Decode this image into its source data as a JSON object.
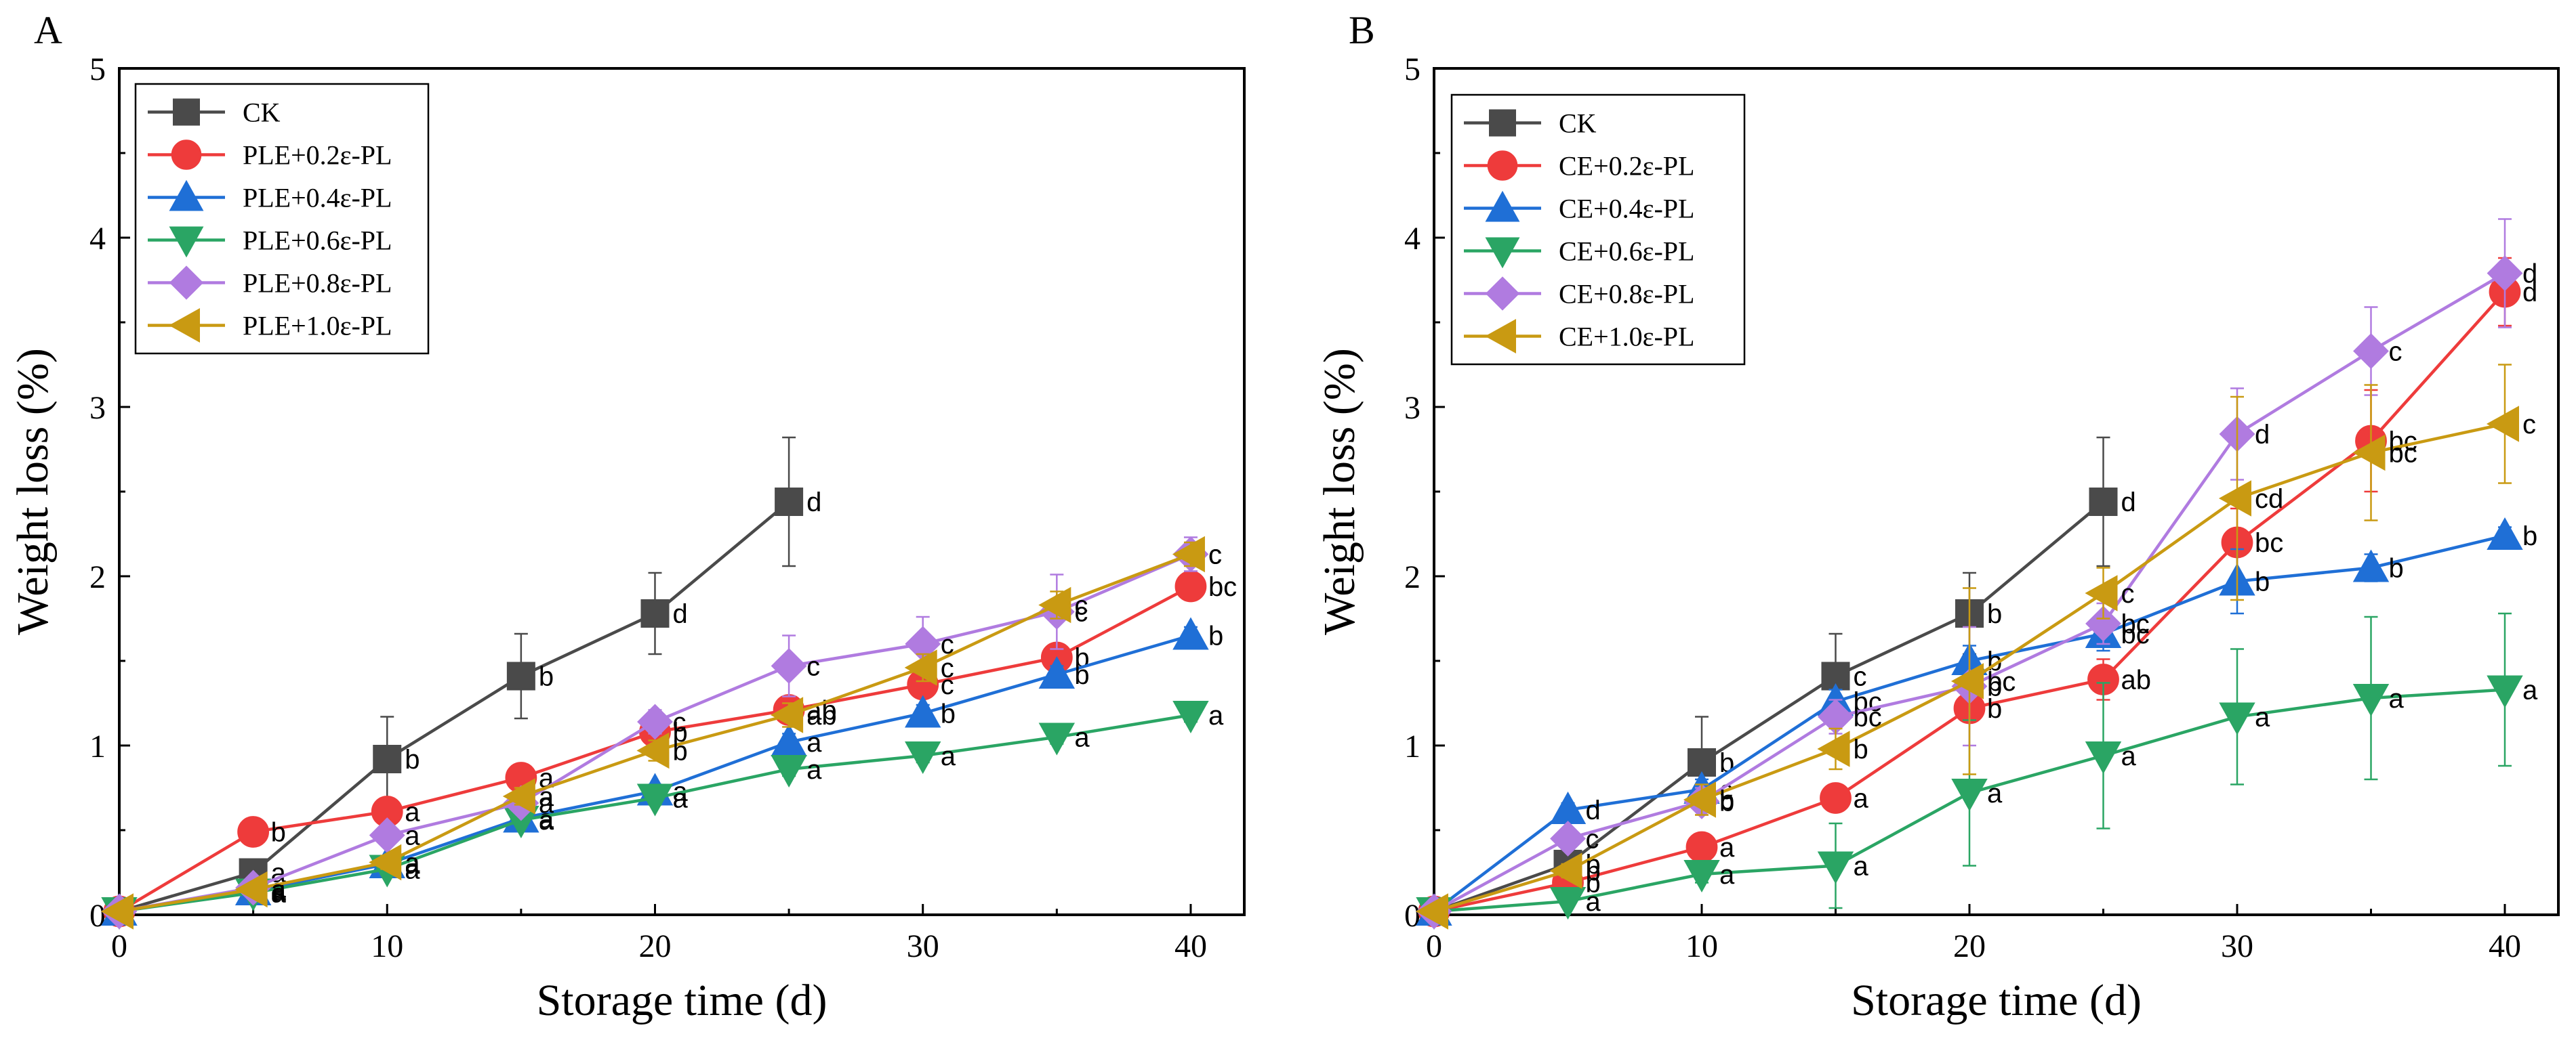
{
  "chart_data": [
    {
      "type": "line",
      "panel": "A",
      "xlabel": "Storage time (d)",
      "ylabel": "Weight loss (%)",
      "xlim": [
        0,
        42
      ],
      "ylim": [
        0,
        5
      ],
      "xticks": [
        0,
        10,
        20,
        30,
        40
      ],
      "yticks": [
        0,
        1,
        2,
        3,
        4,
        5
      ],
      "legend_position": "top-left",
      "series": [
        {
          "name": "CK",
          "color": "#4a4a4a",
          "marker": "square",
          "x": [
            0,
            5,
            10,
            15,
            20,
            25
          ],
          "y": [
            0.02,
            0.25,
            0.92,
            1.41,
            1.78,
            2.44
          ],
          "err": [
            0,
            0.05,
            0.25,
            0.25,
            0.24,
            0.38
          ],
          "labels": [
            "",
            "a",
            "b",
            "b",
            "d",
            "d"
          ]
        },
        {
          "name": "PLE+0.2ε-PL",
          "color": "#ee3b3b",
          "marker": "circle",
          "x": [
            0,
            5,
            10,
            15,
            20,
            25,
            30,
            35,
            40
          ],
          "y": [
            0.02,
            0.49,
            0.61,
            0.81,
            1.08,
            1.21,
            1.36,
            1.52,
            1.94
          ],
          "err": [
            0,
            0.04,
            0.04,
            0.04,
            0.05,
            0.05,
            0.05,
            0.06,
            0.08
          ],
          "labels": [
            "",
            "b",
            "a",
            "a",
            "b",
            "ab",
            "c",
            "b",
            "bc"
          ]
        },
        {
          "name": "PLE+0.4ε-PL",
          "color": "#1f6fd6",
          "marker": "triangle-up",
          "x": [
            0,
            5,
            10,
            15,
            20,
            25,
            30,
            35,
            40
          ],
          "y": [
            0.02,
            0.14,
            0.3,
            0.57,
            0.73,
            1.02,
            1.19,
            1.42,
            1.65
          ],
          "err": [
            0,
            0.03,
            0.03,
            0.04,
            0.04,
            0.05,
            0.05,
            0.05,
            0.05
          ],
          "labels": [
            "",
            "a",
            "a",
            "a",
            "a",
            "a",
            "b",
            "b",
            "b"
          ]
        },
        {
          "name": "PLE+0.6ε-PL",
          "color": "#2aa564",
          "marker": "triangle-down",
          "x": [
            0,
            5,
            10,
            15,
            20,
            25,
            30,
            35,
            40
          ],
          "y": [
            0.02,
            0.13,
            0.27,
            0.56,
            0.69,
            0.86,
            0.94,
            1.05,
            1.18
          ],
          "err": [
            0,
            0.02,
            0.03,
            0.03,
            0.04,
            0.04,
            0.04,
            0.04,
            0.04
          ],
          "labels": [
            "",
            "a",
            "a",
            "a",
            "a",
            "a",
            "a",
            "a",
            "a"
          ]
        },
        {
          "name": "PLE+0.8ε-PL",
          "color": "#b07be0",
          "marker": "diamond",
          "x": [
            0,
            5,
            10,
            15,
            20,
            25,
            30,
            35,
            40
          ],
          "y": [
            0.02,
            0.16,
            0.47,
            0.66,
            1.14,
            1.47,
            1.6,
            1.79,
            2.13
          ],
          "err": [
            0,
            0.03,
            0.04,
            0.05,
            0.07,
            0.18,
            0.16,
            0.22,
            0.1
          ],
          "labels": [
            "",
            "a",
            "a",
            "a",
            "c",
            "c",
            "c",
            "c",
            "c"
          ]
        },
        {
          "name": "PLE+1.0ε-PL",
          "color": "#c99a12",
          "marker": "triangle-left",
          "x": [
            0,
            5,
            10,
            15,
            20,
            25,
            30,
            35,
            40
          ],
          "y": [
            0.02,
            0.15,
            0.31,
            0.7,
            0.97,
            1.18,
            1.46,
            1.83,
            2.13
          ],
          "err": [
            0,
            0.03,
            0.04,
            0.05,
            0.06,
            0.07,
            0.08,
            0.08,
            0.07
          ],
          "labels": [
            "",
            "a",
            "a",
            "a",
            "b",
            "ab",
            "c",
            "c",
            "c"
          ]
        }
      ]
    },
    {
      "type": "line",
      "panel": "B",
      "xlabel": "Storage time (d)",
      "ylabel": "Weight loss (%)",
      "xlim": [
        0,
        42
      ],
      "ylim": [
        0,
        5
      ],
      "xticks": [
        0,
        10,
        20,
        30,
        40
      ],
      "yticks": [
        0,
        1,
        2,
        3,
        4,
        5
      ],
      "legend_position": "top-left",
      "series": [
        {
          "name": "CK",
          "color": "#4a4a4a",
          "marker": "square",
          "x": [
            0,
            5,
            10,
            15,
            20,
            25
          ],
          "y": [
            0.02,
            0.3,
            0.9,
            1.41,
            1.78,
            2.44
          ],
          "err": [
            0,
            0.05,
            0.27,
            0.25,
            0.24,
            0.38
          ],
          "labels": [
            "",
            "b",
            "b",
            "c",
            "b",
            "d"
          ]
        },
        {
          "name": "CE+0.2ε-PL",
          "color": "#ee3b3b",
          "marker": "circle",
          "x": [
            0,
            5,
            10,
            15,
            20,
            25,
            30,
            35,
            40
          ],
          "y": [
            0.02,
            0.19,
            0.4,
            0.69,
            1.22,
            1.39,
            2.2,
            2.8,
            3.68
          ],
          "err": [
            0,
            0.03,
            0.04,
            0.05,
            0.08,
            0.12,
            0.2,
            0.3,
            0.2
          ],
          "labels": [
            "",
            "b",
            "a",
            "a",
            "b",
            "ab",
            "bc",
            "bc",
            "d"
          ]
        },
        {
          "name": "CE+0.4ε-PL",
          "color": "#1f6fd6",
          "marker": "triangle-up",
          "x": [
            0,
            5,
            10,
            15,
            20,
            25,
            30,
            35,
            40
          ],
          "y": [
            0.02,
            0.62,
            0.74,
            1.26,
            1.5,
            1.66,
            1.97,
            2.05,
            2.24
          ],
          "err": [
            0,
            0.04,
            0.06,
            0.07,
            0.09,
            0.1,
            0.19,
            0.08,
            0.05
          ],
          "labels": [
            "",
            "d",
            "c",
            "bc",
            "b",
            "bc",
            "b",
            "b",
            "b"
          ]
        },
        {
          "name": "CE+0.6ε-PL",
          "color": "#2aa564",
          "marker": "triangle-down",
          "x": [
            0,
            5,
            10,
            15,
            20,
            25,
            30,
            35,
            40
          ],
          "y": [
            0.02,
            0.08,
            0.24,
            0.29,
            0.72,
            0.94,
            1.17,
            1.28,
            1.33
          ],
          "err": [
            0,
            0.03,
            0.05,
            0.25,
            0.43,
            0.43,
            0.4,
            0.48,
            0.45
          ],
          "labels": [
            "",
            "a",
            "a",
            "a",
            "a",
            "a",
            "a",
            "a",
            "a"
          ]
        },
        {
          "name": "CE+0.8ε-PL",
          "color": "#b07be0",
          "marker": "diamond",
          "x": [
            0,
            5,
            10,
            15,
            20,
            25,
            30,
            35,
            40
          ],
          "y": [
            0.02,
            0.45,
            0.67,
            1.17,
            1.35,
            1.72,
            2.84,
            3.33,
            3.79
          ],
          "err": [
            0,
            0.05,
            0.08,
            0.1,
            0.35,
            0.12,
            0.27,
            0.26,
            0.32
          ],
          "labels": [
            "",
            "c",
            "b",
            "bc",
            "b",
            "bc",
            "d",
            "c",
            "d"
          ]
        },
        {
          "name": "CE+1.0ε-PL",
          "color": "#c99a12",
          "marker": "triangle-left",
          "x": [
            0,
            5,
            10,
            15,
            20,
            25,
            30,
            35,
            40
          ],
          "y": [
            0.02,
            0.26,
            0.68,
            0.98,
            1.38,
            1.9,
            2.46,
            2.73,
            2.9
          ],
          "err": [
            0,
            0.04,
            0.09,
            0.12,
            0.55,
            0.15,
            0.6,
            0.4,
            0.35
          ],
          "labels": [
            "",
            "b",
            "b",
            "b",
            "bc",
            "c",
            "cd",
            "bc",
            "c"
          ]
        }
      ]
    }
  ]
}
